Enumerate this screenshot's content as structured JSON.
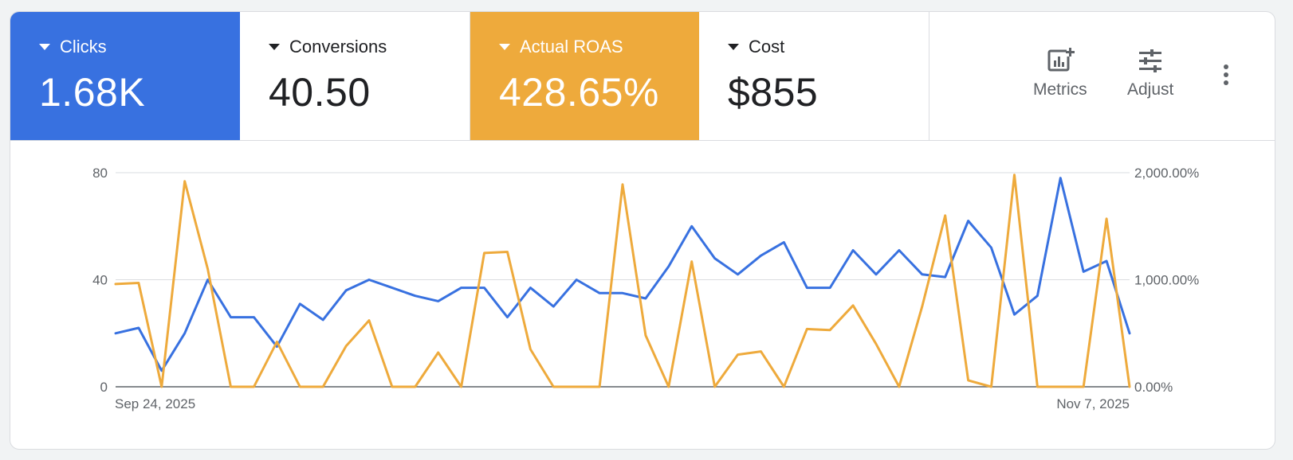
{
  "scorecards": [
    {
      "label": "Clicks",
      "value": "1.68K",
      "color": "#3871e0"
    },
    {
      "label": "Conversions",
      "value": "40.50"
    },
    {
      "label": "Actual ROAS",
      "value": "428.65%",
      "color": "#eeaa3c"
    },
    {
      "label": "Cost",
      "value": "$855"
    }
  ],
  "toolbar": {
    "metrics_label": "Metrics",
    "adjust_label": "Adjust",
    "more_icon": "more-vert-icon"
  },
  "chart_data": {
    "type": "line",
    "x_start_label": "Sep 24, 2025",
    "x_end_label": "Nov 7, 2025",
    "left_axis": {
      "ticks": [
        "0",
        "40",
        "80"
      ],
      "ylim": [
        0,
        80
      ]
    },
    "right_axis": {
      "ticks": [
        "0.00%",
        "1,000.00%",
        "2,000.00%"
      ],
      "ylim": [
        0,
        2000
      ]
    },
    "series": [
      {
        "name": "Clicks",
        "axis": "left",
        "color": "#3871e0",
        "values": [
          20,
          22,
          6,
          20,
          40,
          26,
          26,
          15,
          31,
          25,
          36,
          40,
          37,
          34,
          32,
          37,
          37,
          26,
          37,
          30,
          40,
          35,
          35,
          33,
          45,
          60,
          48,
          42,
          49,
          54,
          37,
          37,
          51,
          42,
          51,
          42,
          41,
          62,
          52,
          27,
          34,
          78,
          43,
          47,
          20
        ]
      },
      {
        "name": "Actual ROAS",
        "axis": "right",
        "color": "#eeaa3c",
        "values": [
          960,
          970,
          0,
          1920,
          1100,
          0,
          0,
          420,
          0,
          0,
          380,
          620,
          0,
          0,
          320,
          0,
          1250,
          1260,
          350,
          0,
          0,
          0,
          1890,
          480,
          0,
          1170,
          0,
          300,
          330,
          0,
          540,
          530,
          760,
          400,
          0,
          750,
          1600,
          60,
          0,
          1980,
          0,
          0,
          0,
          1570,
          0
        ]
      }
    ]
  }
}
